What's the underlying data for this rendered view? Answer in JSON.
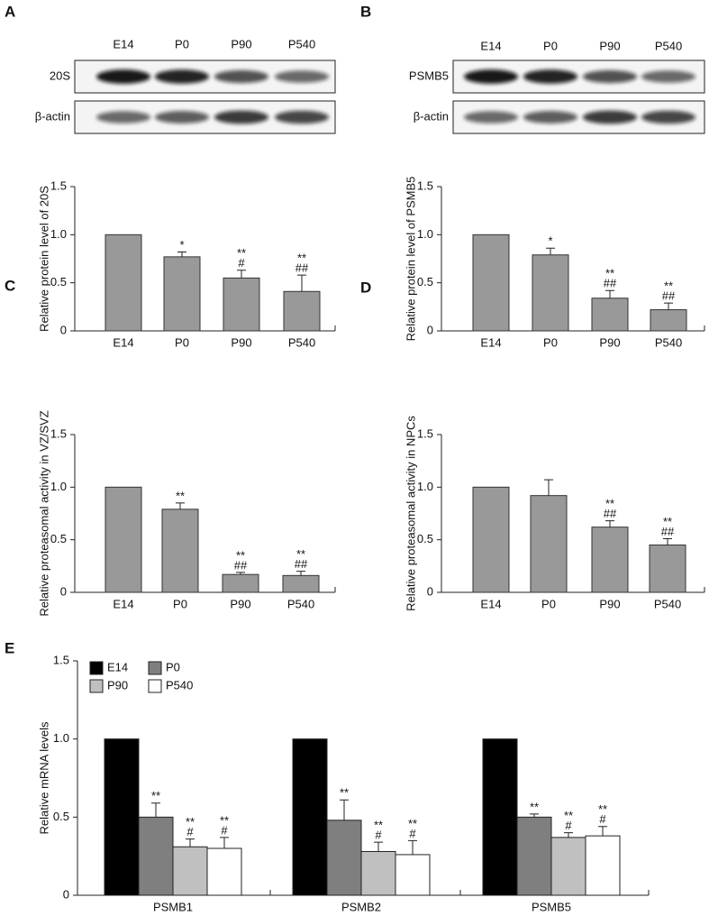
{
  "chart_data": [
    {
      "type": "bar",
      "panel": "A",
      "blot": {
        "lanes": [
          "E14",
          "P0",
          "P90",
          "P540"
        ],
        "rows": [
          "20S",
          "β-actin"
        ]
      },
      "ylabel": "Relative protein level of 20S",
      "categories": [
        "E14",
        "P0",
        "P90",
        "P540"
      ],
      "values": [
        1,
        0.77,
        0.55,
        0.41
      ],
      "errors": [
        null,
        0.05,
        0.08,
        0.17
      ],
      "sig": [
        null,
        [
          "*"
        ],
        [
          "**",
          "#"
        ],
        [
          "**",
          "##"
        ]
      ],
      "color": "#999999",
      "ylim": [
        0,
        1.5
      ],
      "yticks": [
        0,
        0.5,
        {
          "value": 1,
          "label": "1.0"
        },
        1.5
      ]
    },
    {
      "type": "bar",
      "panel": "B",
      "blot": {
        "lanes": [
          "E14",
          "P0",
          "P90",
          "P540"
        ],
        "rows": [
          "PSMB5",
          "β-actin"
        ]
      },
      "ylabel": "Relative protein level of PSMB5",
      "categories": [
        "E14",
        "P0",
        "P90",
        "P540"
      ],
      "values": [
        1,
        0.79,
        0.34,
        0.22
      ],
      "errors": [
        null,
        0.07,
        0.08,
        0.07
      ],
      "sig": [
        null,
        [
          "*"
        ],
        [
          "**",
          "##"
        ],
        [
          "**",
          "##"
        ]
      ],
      "color": "#999999",
      "ylim": [
        0,
        1.5
      ],
      "yticks": [
        0,
        0.5,
        {
          "value": 1,
          "label": "1.0"
        },
        1.5
      ]
    },
    {
      "type": "bar",
      "panel": "C",
      "ylabel": "Relative proteasomal activity in VZ/SVZ",
      "categories": [
        "E14",
        "P0",
        "P90",
        "P540"
      ],
      "values": [
        1,
        0.79,
        0.17,
        0.16
      ],
      "errors": [
        null,
        0.06,
        0.02,
        0.04
      ],
      "sig": [
        null,
        [
          "**"
        ],
        [
          "**",
          "##"
        ],
        [
          "**",
          "##"
        ]
      ],
      "color": "#999999",
      "ylim": [
        0,
        1.5
      ],
      "yticks": [
        0,
        0.5,
        {
          "value": 1,
          "label": "1.0"
        },
        1.5
      ]
    },
    {
      "type": "bar",
      "panel": "D",
      "ylabel": "Relative proteasomal activity in NPCs",
      "categories": [
        "E14",
        "P0",
        "P90",
        "P540"
      ],
      "values": [
        1,
        0.92,
        0.62,
        0.45
      ],
      "errors": [
        null,
        0.15,
        0.06,
        0.06
      ],
      "sig": [
        null,
        null,
        [
          "**",
          "##"
        ],
        [
          "**",
          "##"
        ]
      ],
      "color": "#999999",
      "ylim": [
        0,
        1.5
      ],
      "yticks": [
        0,
        0.5,
        {
          "value": 1,
          "label": "1.0"
        },
        1.5
      ]
    },
    {
      "type": "bar",
      "panel": "E",
      "ylabel": "Relative mRNA levels",
      "categories": [
        "PSMB1",
        "PSMB2",
        "PSMB5"
      ],
      "series": [
        {
          "name": "E14",
          "color": "#000000",
          "values": [
            1,
            1,
            1
          ]
        },
        {
          "name": "P0",
          "color": "#7f7f7f",
          "values": [
            0.5,
            0.48,
            0.5
          ],
          "errors": [
            0.09,
            0.13,
            0.02
          ],
          "sig": [
            [
              "**"
            ],
            [
              "**"
            ],
            [
              "**"
            ]
          ]
        },
        {
          "name": "P90",
          "color": "#c0c0c0",
          "values": [
            0.31,
            0.28,
            0.37
          ],
          "errors": [
            0.05,
            0.06,
            0.03
          ],
          "sig": [
            [
              "**",
              "#"
            ],
            [
              "**",
              "#"
            ],
            [
              "**",
              "#"
            ]
          ]
        },
        {
          "name": "P540",
          "color": "#ffffff",
          "values": [
            0.3,
            0.26,
            0.38
          ],
          "errors": [
            0.07,
            0.09,
            0.06
          ],
          "sig": [
            [
              "**",
              "#"
            ],
            [
              "**",
              "#"
            ],
            [
              "**",
              "#"
            ]
          ]
        }
      ],
      "ylim": [
        0,
        1.5
      ],
      "yticks": [
        0,
        0.5,
        {
          "value": 1,
          "label": "1.0"
        },
        1.5
      ]
    }
  ]
}
